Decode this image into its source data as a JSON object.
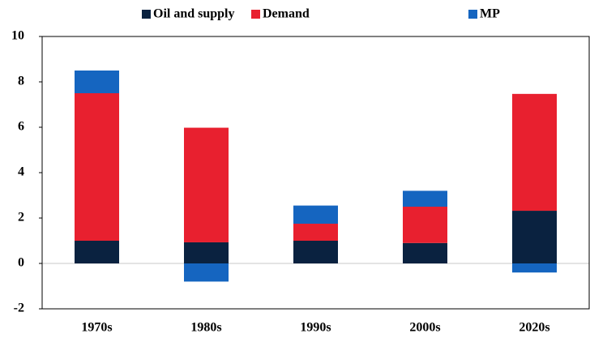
{
  "chart_data": {
    "type": "bar",
    "categories": [
      "1970s",
      "1980s",
      "1990s",
      "2000s",
      "2020s"
    ],
    "series": [
      {
        "name": "Oil and supply",
        "color": "#0a2240",
        "values": [
          1.0,
          0.93,
          1.0,
          0.9,
          2.32
        ]
      },
      {
        "name": "Demand",
        "color": "#e8202f",
        "values": [
          6.5,
          5.05,
          0.75,
          1.6,
          5.15
        ]
      },
      {
        "name": "MP",
        "color": "#1565c0",
        "values": [
          1.0,
          -0.8,
          0.8,
          0.7,
          -0.4
        ]
      }
    ],
    "ylim": [
      -2,
      10
    ],
    "yticks": [
      -2,
      0,
      2,
      4,
      6,
      8,
      10
    ],
    "stacked": true
  }
}
